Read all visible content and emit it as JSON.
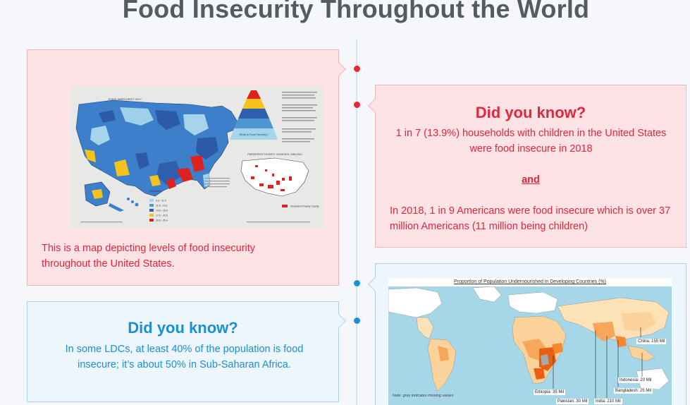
{
  "page": {
    "title": "Food Insecurity Throughout the World"
  },
  "map_card": {
    "caption": "This is a map depicting levels of food insecurity throughout the United States."
  },
  "us_card": {
    "heading": "Did you know?",
    "fact1": "1 in 7 (13.9%) households with children in the United States were food insecure in 2018",
    "connector": "and",
    "fact2": "In 2018, 1 in 9 Americans were food insecure which is over 37 million Americans (11 million being children)"
  },
  "ldc_card": {
    "heading": "Did you know?",
    "text": "In some LDCs, at least 40% of the population is food insecure; it’s about 50% in Sub-Saharan Africa."
  },
  "world_map": {
    "title": "Proportion of Population Undernourished in Developing Countries (%)",
    "note": "Note: grey indicates missing values",
    "labels": {
      "china": "China: 155 Mil",
      "indonesia": "Indonesia: 20 Mil",
      "bangladesh": "Bangladesh: 25 Mil",
      "ethiopia": "Ethiopia: 35 Mil",
      "pakistan": "Pakistan: 30 Mil",
      "india": "India: 210 Mil"
    }
  },
  "us_map": {
    "title": "FOOD INSECURITY 2017",
    "pyramid_label": "What is Food Security?",
    "inset_title": "PERSISTENT POVERTY COUNTIES, 1980-2010",
    "legend_title": "Counties",
    "legend": [
      "0.0 - 11.4",
      "11.5 - 14.2",
      "14.3 - 16.9",
      "17.0 - 20.5",
      "20.6 - 35.4"
    ],
    "legend_colors": [
      "#a6d4ea",
      "#4f97d1",
      "#2e5fae",
      "#f3c21c",
      "#e0221f"
    ],
    "inset_legend": "Persistent Poverty County"
  },
  "colors": {
    "accent_red": "#e5253a",
    "accent_blue": "#1a8fd4",
    "title_grey": "#555b60"
  }
}
